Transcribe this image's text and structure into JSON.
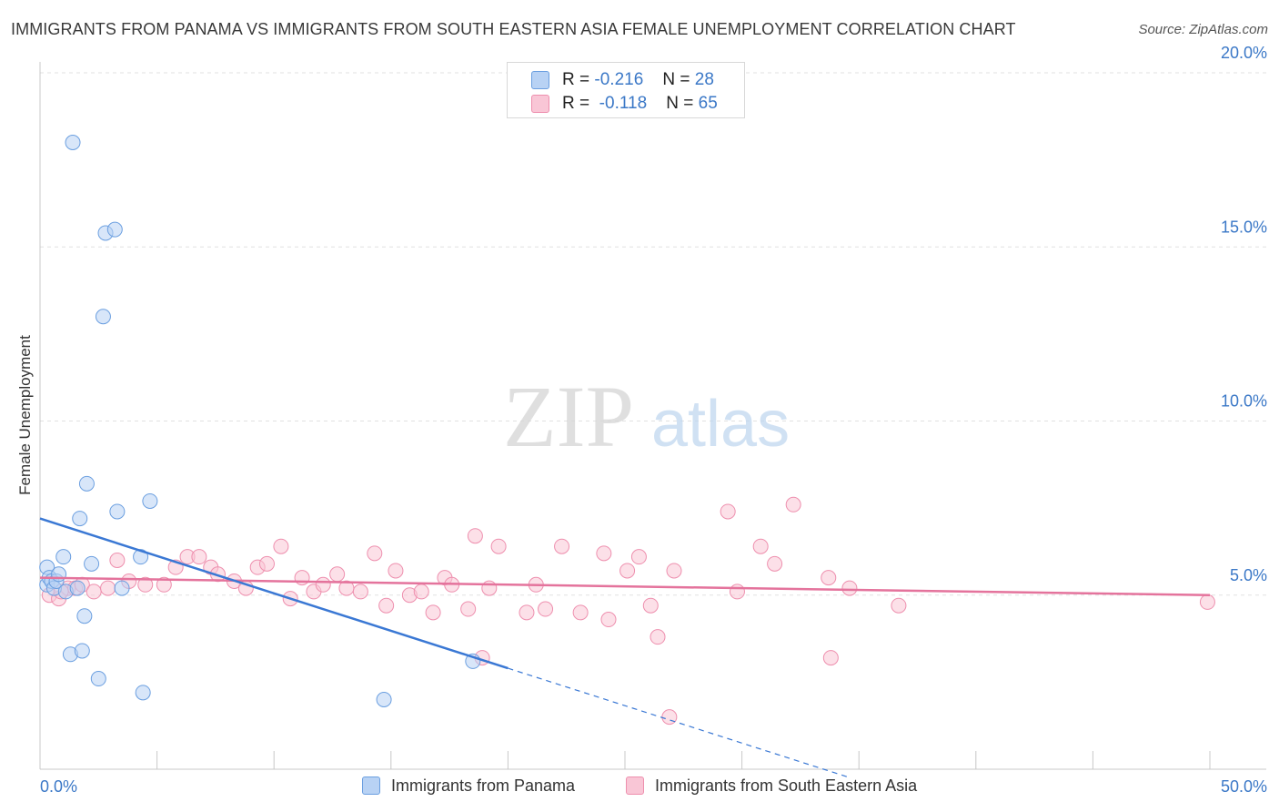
{
  "header": {
    "title": "IMMIGRANTS FROM PANAMA VS IMMIGRANTS FROM SOUTH EASTERN ASIA FEMALE UNEMPLOYMENT CORRELATION CHART",
    "source": "Source: ZipAtlas.com"
  },
  "watermark": {
    "zip": "ZIP",
    "atlas": "atlas"
  },
  "legend": {
    "r_label": "R =",
    "n_label": "N =",
    "entries": [
      {
        "r": "-0.216",
        "n": "28",
        "fill": "#b8d2f4",
        "stroke": "#6b9fe0"
      },
      {
        "r": "-0.118",
        "n": "65",
        "fill": "#f9c6d6",
        "stroke": "#ee8fae"
      }
    ]
  },
  "chart_data": {
    "type": "scatter",
    "title": "IMMIGRANTS FROM PANAMA VS IMMIGRANTS FROM SOUTH EASTERN ASIA FEMALE UNEMPLOYMENT CORRELATION CHART",
    "xlabel": "",
    "ylabel": "Female Unemployment",
    "xlim": [
      0,
      50
    ],
    "ylim": [
      0,
      20
    ],
    "x_tick_labels": [
      "0.0%",
      "50.0%"
    ],
    "y_ticks": [
      5,
      10,
      15,
      20
    ],
    "y_tick_labels": [
      "5.0%",
      "10.0%",
      "15.0%",
      "20.0%"
    ],
    "grid": true,
    "legend_position": "top-center",
    "series": [
      {
        "name": "Immigrants from Panama",
        "color": "#6b9fe0",
        "fill": "#b8d2f4",
        "line_color": "#3a78d4",
        "trend": {
          "x0": 0,
          "y0": 7.2,
          "x1": 20,
          "y1": 2.9,
          "dash_to_x": 34.5
        },
        "points": [
          [
            0.3,
            5.8
          ],
          [
            0.3,
            5.3
          ],
          [
            0.4,
            5.5
          ],
          [
            0.5,
            5.4
          ],
          [
            0.6,
            5.2
          ],
          [
            0.7,
            5.4
          ],
          [
            0.8,
            5.6
          ],
          [
            1.0,
            6.1
          ],
          [
            1.1,
            5.1
          ],
          [
            1.3,
            3.3
          ],
          [
            1.4,
            18.0
          ],
          [
            1.6,
            5.2
          ],
          [
            1.7,
            7.2
          ],
          [
            1.8,
            3.4
          ],
          [
            1.9,
            4.4
          ],
          [
            2.0,
            8.2
          ],
          [
            2.2,
            5.9
          ],
          [
            2.5,
            2.6
          ],
          [
            2.7,
            13.0
          ],
          [
            2.8,
            15.4
          ],
          [
            3.2,
            15.5
          ],
          [
            3.3,
            7.4
          ],
          [
            3.5,
            5.2
          ],
          [
            4.3,
            6.1
          ],
          [
            4.4,
            2.2
          ],
          [
            4.7,
            7.7
          ],
          [
            14.7,
            2.0
          ],
          [
            18.5,
            3.1
          ]
        ]
      },
      {
        "name": "Immigrants from South Eastern Asia",
        "color": "#ee8fae",
        "fill": "#f9c6d6",
        "line_color": "#e4739c",
        "trend": {
          "x0": 0,
          "y0": 5.5,
          "x1": 50,
          "y1": 5.0
        },
        "points": [
          [
            0.4,
            5.0
          ],
          [
            0.8,
            4.9
          ],
          [
            1.2,
            5.2
          ],
          [
            1.5,
            5.2
          ],
          [
            1.8,
            5.3
          ],
          [
            2.3,
            5.1
          ],
          [
            2.9,
            5.2
          ],
          [
            3.3,
            6.0
          ],
          [
            3.8,
            5.4
          ],
          [
            4.5,
            5.3
          ],
          [
            5.3,
            5.3
          ],
          [
            5.8,
            5.8
          ],
          [
            6.3,
            6.1
          ],
          [
            6.8,
            6.1
          ],
          [
            7.3,
            5.8
          ],
          [
            7.6,
            5.6
          ],
          [
            8.3,
            5.4
          ],
          [
            8.8,
            5.2
          ],
          [
            9.3,
            5.8
          ],
          [
            9.7,
            5.9
          ],
          [
            10.3,
            6.4
          ],
          [
            10.7,
            4.9
          ],
          [
            11.2,
            5.5
          ],
          [
            11.7,
            5.1
          ],
          [
            12.1,
            5.3
          ],
          [
            12.7,
            5.6
          ],
          [
            13.1,
            5.2
          ],
          [
            13.7,
            5.1
          ],
          [
            14.3,
            6.2
          ],
          [
            14.8,
            4.7
          ],
          [
            15.2,
            5.7
          ],
          [
            15.8,
            5.0
          ],
          [
            16.3,
            5.1
          ],
          [
            16.8,
            4.5
          ],
          [
            17.3,
            5.5
          ],
          [
            17.6,
            5.3
          ],
          [
            18.3,
            4.6
          ],
          [
            18.6,
            6.7
          ],
          [
            18.9,
            3.2
          ],
          [
            19.2,
            5.2
          ],
          [
            19.6,
            6.4
          ],
          [
            20.8,
            4.5
          ],
          [
            21.2,
            5.3
          ],
          [
            21.6,
            4.6
          ],
          [
            22.3,
            6.4
          ],
          [
            23.1,
            4.5
          ],
          [
            24.1,
            6.2
          ],
          [
            24.3,
            4.3
          ],
          [
            25.1,
            5.7
          ],
          [
            25.6,
            6.1
          ],
          [
            26.1,
            4.7
          ],
          [
            26.4,
            3.8
          ],
          [
            26.9,
            1.5
          ],
          [
            27.1,
            5.7
          ],
          [
            29.4,
            7.4
          ],
          [
            29.8,
            5.1
          ],
          [
            30.8,
            6.4
          ],
          [
            31.4,
            5.9
          ],
          [
            32.2,
            7.6
          ],
          [
            33.7,
            5.5
          ],
          [
            33.8,
            3.2
          ],
          [
            34.6,
            5.2
          ],
          [
            36.7,
            4.7
          ],
          [
            49.9,
            4.8
          ],
          [
            0.9,
            5.1
          ]
        ]
      }
    ]
  },
  "bottom_legend": [
    {
      "label": "Immigrants from Panama",
      "fill": "#b8d2f4",
      "stroke": "#6b9fe0"
    },
    {
      "label": "Immigrants from South Eastern Asia",
      "fill": "#f9c6d6",
      "stroke": "#ee8fae"
    }
  ]
}
